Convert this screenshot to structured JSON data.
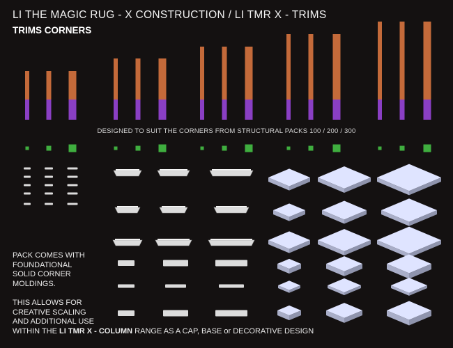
{
  "header": {
    "title": "LI THE MAGIC RUG - X CONSTRUCTION / LI TMR X - TRIMS",
    "subtitle": "TRIMS CORNERS"
  },
  "designed_note": "DESIGNED TO SUIT THE CORNERS FROM STRUCTURAL PACKS 100 / 200 / 300",
  "description": {
    "pack_lines": [
      "PACK COMES WITH",
      "FOUNDATIONAL",
      "SOLID CORNER",
      "MOLDINGS."
    ],
    "allows_lines": [
      "THIS ALLOWS FOR",
      "CREATIVE SCALING",
      "AND ADDITIONAL USE"
    ],
    "final_prefix": "WITHIN THE ",
    "final_bold": "LI TMR X - COLUMN",
    "final_suffix": " RANGE AS A CAP, BASE or DECORATIVE DESIGN"
  },
  "colors": {
    "background": "#141111",
    "bar_orange": "#c46a3a",
    "bar_purple": "#8a3fc4",
    "marker_green": "#3fae3f",
    "trim_face": "#dcdcdc",
    "cap_top": "#dfe4ff"
  }
}
